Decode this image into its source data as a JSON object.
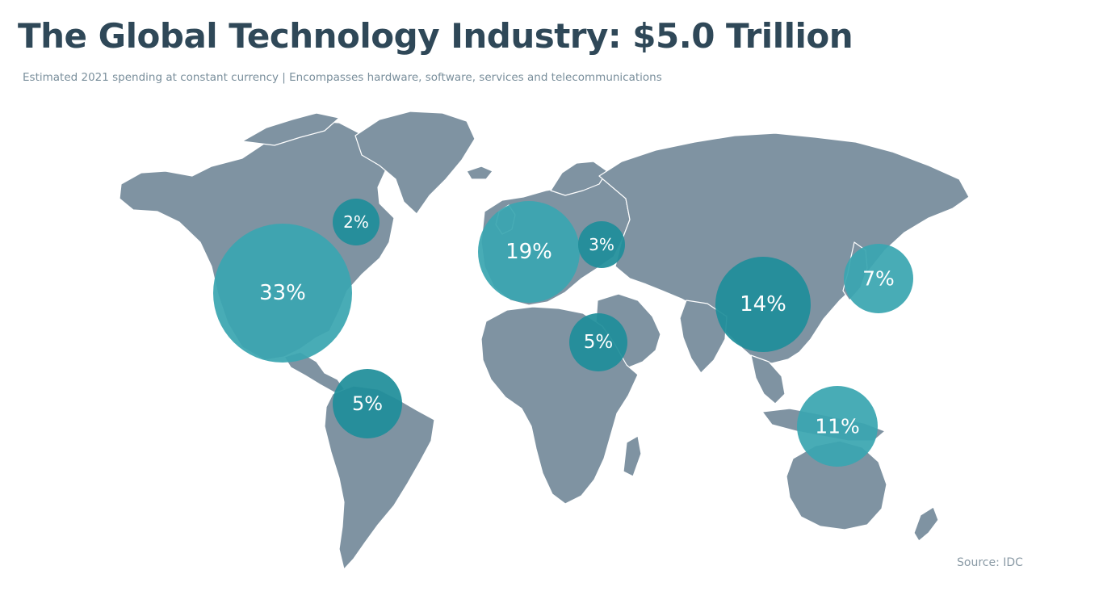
{
  "title": "The Global Technology Industry: $5.0 Trillion",
  "subtitle": "Estimated 2021 spending at constant currency | Encompasses hardware, software, services and telecommunications",
  "source": "Source:  IDC",
  "colors": {
    "land": "#7f93a2",
    "bubble_light": "#3aa6b0",
    "bubble_dark": "#1f8e9a",
    "title": "#2f4858"
  },
  "regions": [
    {
      "name": "United States",
      "label": "33%",
      "value": 33
    },
    {
      "name": "Canada",
      "label": "2%",
      "value": 2
    },
    {
      "name": "Latin America",
      "label": "5%",
      "value": 5
    },
    {
      "name": "Western Europe",
      "label": "19%",
      "value": 19
    },
    {
      "name": "Central & Eastern Europe",
      "label": "3%",
      "value": 3
    },
    {
      "name": "Middle East & Africa",
      "label": "5%",
      "value": 5
    },
    {
      "name": "China",
      "label": "14%",
      "value": 14
    },
    {
      "name": "Japan",
      "label": "7%",
      "value": 7
    },
    {
      "name": "Rest of Asia Pacific",
      "label": "11%",
      "value": 11
    }
  ]
}
